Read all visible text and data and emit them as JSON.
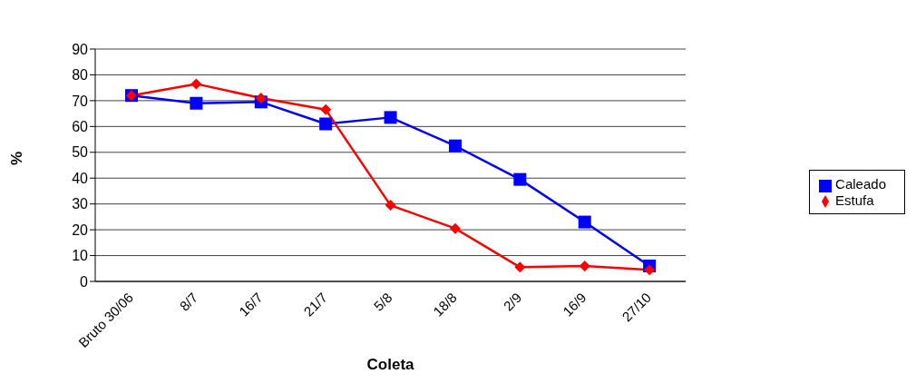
{
  "chart_data": {
    "type": "line",
    "xlabel": "Coleta",
    "ylabel": "%",
    "categories": [
      "Bruto 30/06",
      "8/7",
      "16/7",
      "21/7",
      "5/8",
      "18/8",
      "2/9",
      "16/9",
      "27/10"
    ],
    "ylim": [
      0,
      90
    ],
    "yticks": [
      0,
      10,
      20,
      30,
      40,
      50,
      60,
      70,
      80,
      90
    ],
    "grid": "y",
    "legend": "right",
    "series": [
      {
        "name": "Caleado",
        "color": "#0000ff",
        "marker": "square",
        "values": [
          72,
          69,
          69.5,
          61,
          63.5,
          52.5,
          39.5,
          23,
          6
        ]
      },
      {
        "name": "Estufa",
        "color": "#ff0000",
        "marker": "diamond",
        "values": [
          72,
          76.5,
          71,
          66.5,
          29.5,
          20.5,
          5.5,
          6,
          4.5
        ]
      }
    ]
  }
}
